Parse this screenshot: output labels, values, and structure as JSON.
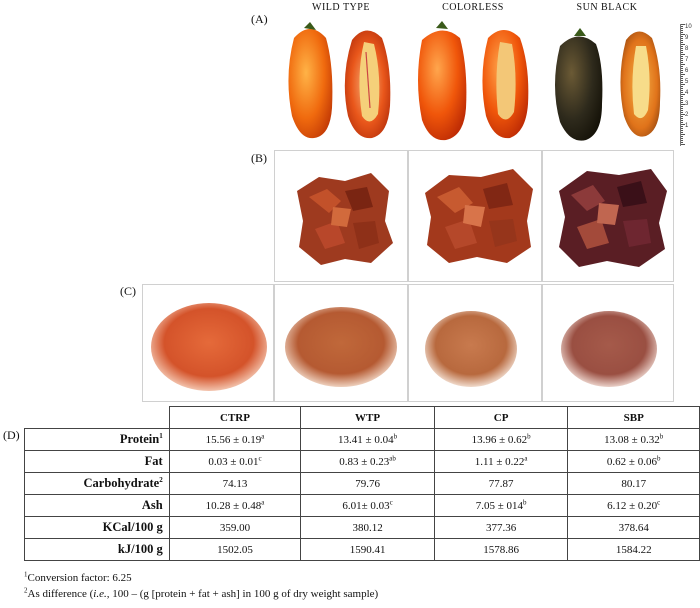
{
  "panels": {
    "a": "(A)",
    "b": "(B)",
    "c": "(C)",
    "d": "(D)"
  },
  "varieties": [
    "WILD TYPE",
    "COLORLESS",
    "SUN BLACK"
  ],
  "ruler_labels": [
    "10",
    "9",
    "8",
    "7",
    "6",
    "5",
    "4",
    "3",
    "2",
    "1"
  ],
  "table": {
    "columns": [
      "CTRP",
      "WTP",
      "CP",
      "SBP"
    ],
    "rows": [
      {
        "label": "Protein",
        "label_sup": "1",
        "cells": [
          {
            "v": "15.56 ± 0.19",
            "s": "a"
          },
          {
            "v": "13.41 ± 0.04",
            "s": "b"
          },
          {
            "v": "13.96 ± 0.62",
            "s": "b"
          },
          {
            "v": "13.08 ± 0.32",
            "s": "b"
          }
        ]
      },
      {
        "label": "Fat",
        "label_sup": "",
        "cells": [
          {
            "v": "0.03 ± 0.01",
            "s": "c"
          },
          {
            "v": "0.83 ± 0.23",
            "s": "ab"
          },
          {
            "v": "1.11 ± 0.22",
            "s": "a"
          },
          {
            "v": "0.62 ± 0.06",
            "s": "b"
          }
        ]
      },
      {
        "label": "Carbohydrate",
        "label_sup": "2",
        "cells": [
          {
            "v": "74.13",
            "s": ""
          },
          {
            "v": "79.76",
            "s": ""
          },
          {
            "v": "77.87",
            "s": ""
          },
          {
            "v": "80.17",
            "s": ""
          }
        ]
      },
      {
        "label": "Ash",
        "label_sup": "",
        "cells": [
          {
            "v": "10.28 ± 0.48",
            "s": "a"
          },
          {
            "v": "6.01± 0.03",
            "s": "c"
          },
          {
            "v": "7.05 ± 014",
            "s": "b"
          },
          {
            "v": "6.12 ± 0.20",
            "s": "c"
          }
        ]
      },
      {
        "label": "KCal/100 g",
        "label_sup": "",
        "cells": [
          {
            "v": "359.00",
            "s": ""
          },
          {
            "v": "380.12",
            "s": ""
          },
          {
            "v": "377.36",
            "s": ""
          },
          {
            "v": "378.64",
            "s": ""
          }
        ]
      },
      {
        "label": "kJ/100 g",
        "label_sup": "",
        "cells": [
          {
            "v": "1502.05",
            "s": ""
          },
          {
            "v": "1590.41",
            "s": ""
          },
          {
            "v": "1578.86",
            "s": ""
          },
          {
            "v": "1584.22",
            "s": ""
          }
        ]
      }
    ]
  },
  "footnotes": {
    "f1_sup": "1",
    "f1": "Conversion factor: 6.25",
    "f2_sup": "2",
    "f2_a": "As difference (",
    "f2_ie": "i.e.,",
    "f2_b": " 100 – (g [protein + fat + ash] in 100 g of dry weight sample)"
  }
}
